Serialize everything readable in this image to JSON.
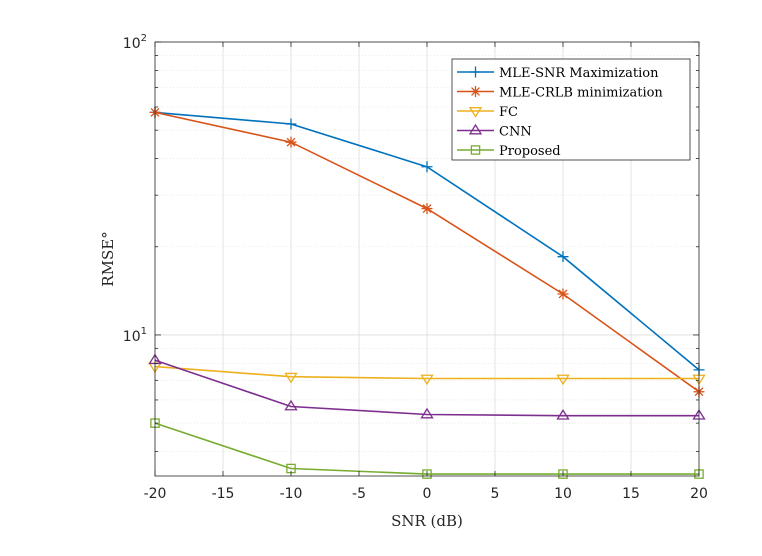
{
  "chart_data": {
    "type": "line",
    "xlabel": "SNR (dB)",
    "ylabel": "RMSE°",
    "yscale": "log",
    "xlim": [
      -20,
      20
    ],
    "ylim": [
      3.3,
      100
    ],
    "xticks": [
      -20,
      -15,
      -10,
      -5,
      0,
      5,
      10,
      15,
      20
    ],
    "xtick_labels": [
      "-20",
      "-15",
      "-10",
      "-5",
      "0",
      "5",
      "10",
      "15",
      "20"
    ],
    "yticks_major": [
      {
        "value": 10,
        "base": "10",
        "exp": "1"
      },
      {
        "value": 100,
        "base": "10",
        "exp": "2"
      }
    ],
    "grid": true,
    "legend_position": "top-right",
    "x": [
      -20,
      -10,
      0,
      10,
      20
    ],
    "series": [
      {
        "name": "MLE-SNR Maximization",
        "color": "#0072BD",
        "marker": "plus",
        "values": [
          57.5,
          52.5,
          37.5,
          18.5,
          7.6
        ]
      },
      {
        "name": "MLE-CRLB minimization",
        "color": "#D95319",
        "marker": "asterisk",
        "values": [
          57.5,
          45.5,
          27.0,
          13.8,
          6.4
        ]
      },
      {
        "name": "FC",
        "color": "#EDB120",
        "marker": "triangle-down",
        "values": [
          7.8,
          7.2,
          7.1,
          7.1,
          7.1
        ]
      },
      {
        "name": "CNN",
        "color": "#7E2F8E",
        "marker": "triangle-up",
        "values": [
          8.2,
          5.7,
          5.35,
          5.3,
          5.3
        ]
      },
      {
        "name": "Proposed",
        "color": "#77AC30",
        "marker": "square",
        "values": [
          5.0,
          3.5,
          3.35,
          3.35,
          3.35
        ]
      }
    ]
  }
}
